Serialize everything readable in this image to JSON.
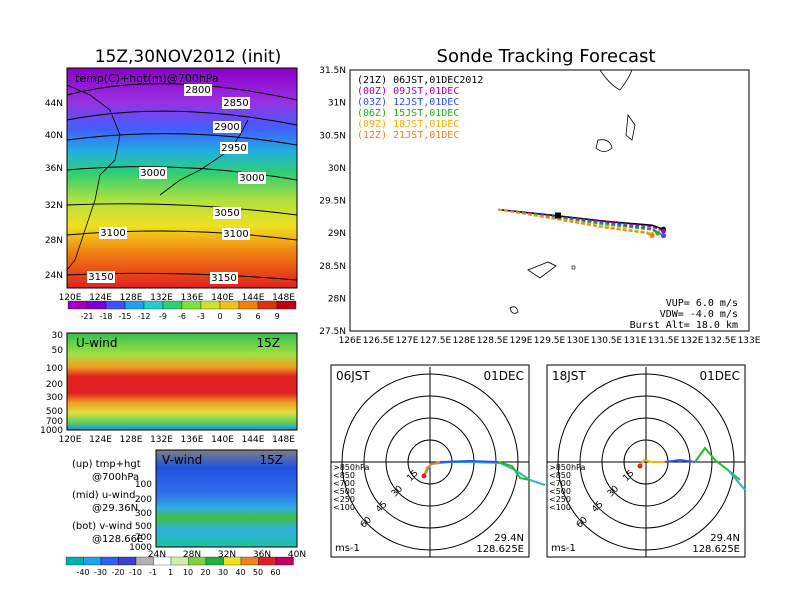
{
  "main_title": "15Z,30NOV2012 (init)",
  "right_title": "Sonde Tracking Forecast",
  "top_map": {
    "label": "temp(C)+hgt(m)@700hPa",
    "lat_labels": [
      "44N",
      "40N",
      "36N",
      "32N",
      "28N",
      "24N"
    ],
    "lon_labels": [
      "120E",
      "124E",
      "128E",
      "132E",
      "136E",
      "140E",
      "144E",
      "148E"
    ],
    "contour_labels": [
      "2800",
      "2850",
      "2900",
      "2950",
      "3000",
      "3000",
      "3050",
      "3100",
      "3100",
      "3150",
      "3150"
    ],
    "colorbar_labels": [
      "-21",
      "-18",
      "-15",
      "-12",
      "-9",
      "-6",
      "-3",
      "0",
      "3",
      "6",
      "9"
    ]
  },
  "uwind": {
    "label": "U-wind",
    "time": "15Z",
    "p_labels": [
      "30",
      "50",
      "100",
      "200",
      "300",
      "500",
      "700",
      "1000"
    ],
    "lon_labels": [
      "120E",
      "124E",
      "128E",
      "132E",
      "136E",
      "140E",
      "144E",
      "148E"
    ]
  },
  "vwind": {
    "label": "V-wind",
    "time": "15Z",
    "p_labels": [
      "100",
      "200",
      "300",
      "500",
      "700",
      "1000"
    ],
    "lat_labels": [
      "24N",
      "28N",
      "32N",
      "36N",
      "40N"
    ]
  },
  "legend_text": {
    "l1a": "(up) tmp+hgt",
    "l1b": "@700hPa",
    "l2a": "(mid) u-wind",
    "l2b": "@29.36N",
    "l3a": "(bot) v-wind",
    "l3b": "@128.66E"
  },
  "bottom_colorbar_labels": [
    "-40",
    "-30",
    "-20",
    "-10",
    "-1",
    "1",
    "10",
    "20",
    "30",
    "40",
    "50",
    "60"
  ],
  "track": {
    "lat_labels": [
      "31.5N",
      "31N",
      "30.5N",
      "30N",
      "29.5N",
      "29N",
      "28.5N",
      "28N",
      "27.5N"
    ],
    "lon_labels": [
      "126E",
      "126.5E",
      "127E",
      "127.5E",
      "128E",
      "128.5E",
      "129E",
      "129.5E",
      "130E",
      "130.5E",
      "131E",
      "131.5E",
      "132E",
      "132.5E",
      "133E"
    ],
    "legend": [
      {
        "text": "(21Z) 06JST,01DEC2012",
        "color": "#000000"
      },
      {
        "text": "(00Z) 09JST,01DEC",
        "color": "#b000b0"
      },
      {
        "text": "(03Z) 12JST,01DEC",
        "color": "#3050f0"
      },
      {
        "text": "(06Z) 15JST,01DEC",
        "color": "#20b020"
      },
      {
        "text": "(09Z) 18JST,01DEC",
        "color": "#f0b000"
      },
      {
        "text": "(12Z) 21JST,01DEC",
        "color": "#f08020"
      }
    ],
    "vup": "VUP=  6.0 m/s",
    "vdw": "VDW= -4.0 m/s",
    "burst": "Burst Alt=  18.0 km"
  },
  "hodo_left": {
    "left_label": "06JST",
    "right_label": "01DEC",
    "ring_labels": [
      "15",
      "30",
      "45",
      "60"
    ],
    "unit": "ms-1",
    "lat": "29.4N",
    "lon": "128.625E",
    "levels": [
      ">850hPa",
      "<850",
      "<700",
      "<500",
      "<250",
      "<100"
    ]
  },
  "hodo_right": {
    "left_label": "18JST",
    "right_label": "01DEC",
    "ring_labels": [
      "15",
      "30",
      "45",
      "60"
    ],
    "unit": "ms-1",
    "lat": "29.4N",
    "lon": "128.625E",
    "levels": [
      ">850hPa",
      "<850",
      "<700",
      "<500",
      "<250",
      "<100"
    ]
  },
  "level_colors": [
    "#e02020",
    "#f08020",
    "#e0c000",
    "#20c020",
    "#20b0e0",
    "#3050f0"
  ],
  "chart_data": {
    "type": "line",
    "title": "Sonde Tracking Forecast",
    "xlim": [
      126,
      133
    ],
    "ylim": [
      27.5,
      31.5
    ],
    "series": [
      {
        "name": "(21Z) 06JST,01DEC2012",
        "x": [
          128.6,
          129.5,
          130.5,
          131.3,
          131.5
        ],
        "y": [
          29.36,
          29.28,
          29.18,
          29.12,
          29.06
        ]
      },
      {
        "name": "(00Z) 09JST,01DEC",
        "x": [
          128.6,
          129.5,
          130.5,
          131.3,
          131.5
        ],
        "y": [
          29.36,
          29.27,
          29.17,
          29.1,
          29.03
        ]
      },
      {
        "name": "(03Z) 12JST,01DEC",
        "x": [
          128.6,
          129.5,
          130.5,
          131.3,
          131.5
        ],
        "y": [
          29.36,
          29.26,
          29.15,
          29.07,
          28.96
        ]
      },
      {
        "name": "(06Z) 15JST,01DEC",
        "x": [
          128.6,
          129.5,
          130.5,
          131.3,
          131.4
        ],
        "y": [
          29.36,
          29.25,
          29.13,
          29.05,
          29.0
        ]
      },
      {
        "name": "(09Z) 18JST,01DEC",
        "x": [
          128.6,
          129.5,
          130.5,
          131.2,
          131.3
        ],
        "y": [
          29.36,
          29.24,
          29.1,
          29.02,
          28.98
        ]
      },
      {
        "name": "(12Z) 21JST,01DEC",
        "x": [
          128.6,
          129.5,
          130.5,
          131.2,
          131.3
        ],
        "y": [
          29.36,
          29.23,
          29.08,
          29.0,
          28.96
        ]
      }
    ],
    "vup_ms": 6.0,
    "vdw_ms": -4.0,
    "burst_alt_km": 18.0
  }
}
